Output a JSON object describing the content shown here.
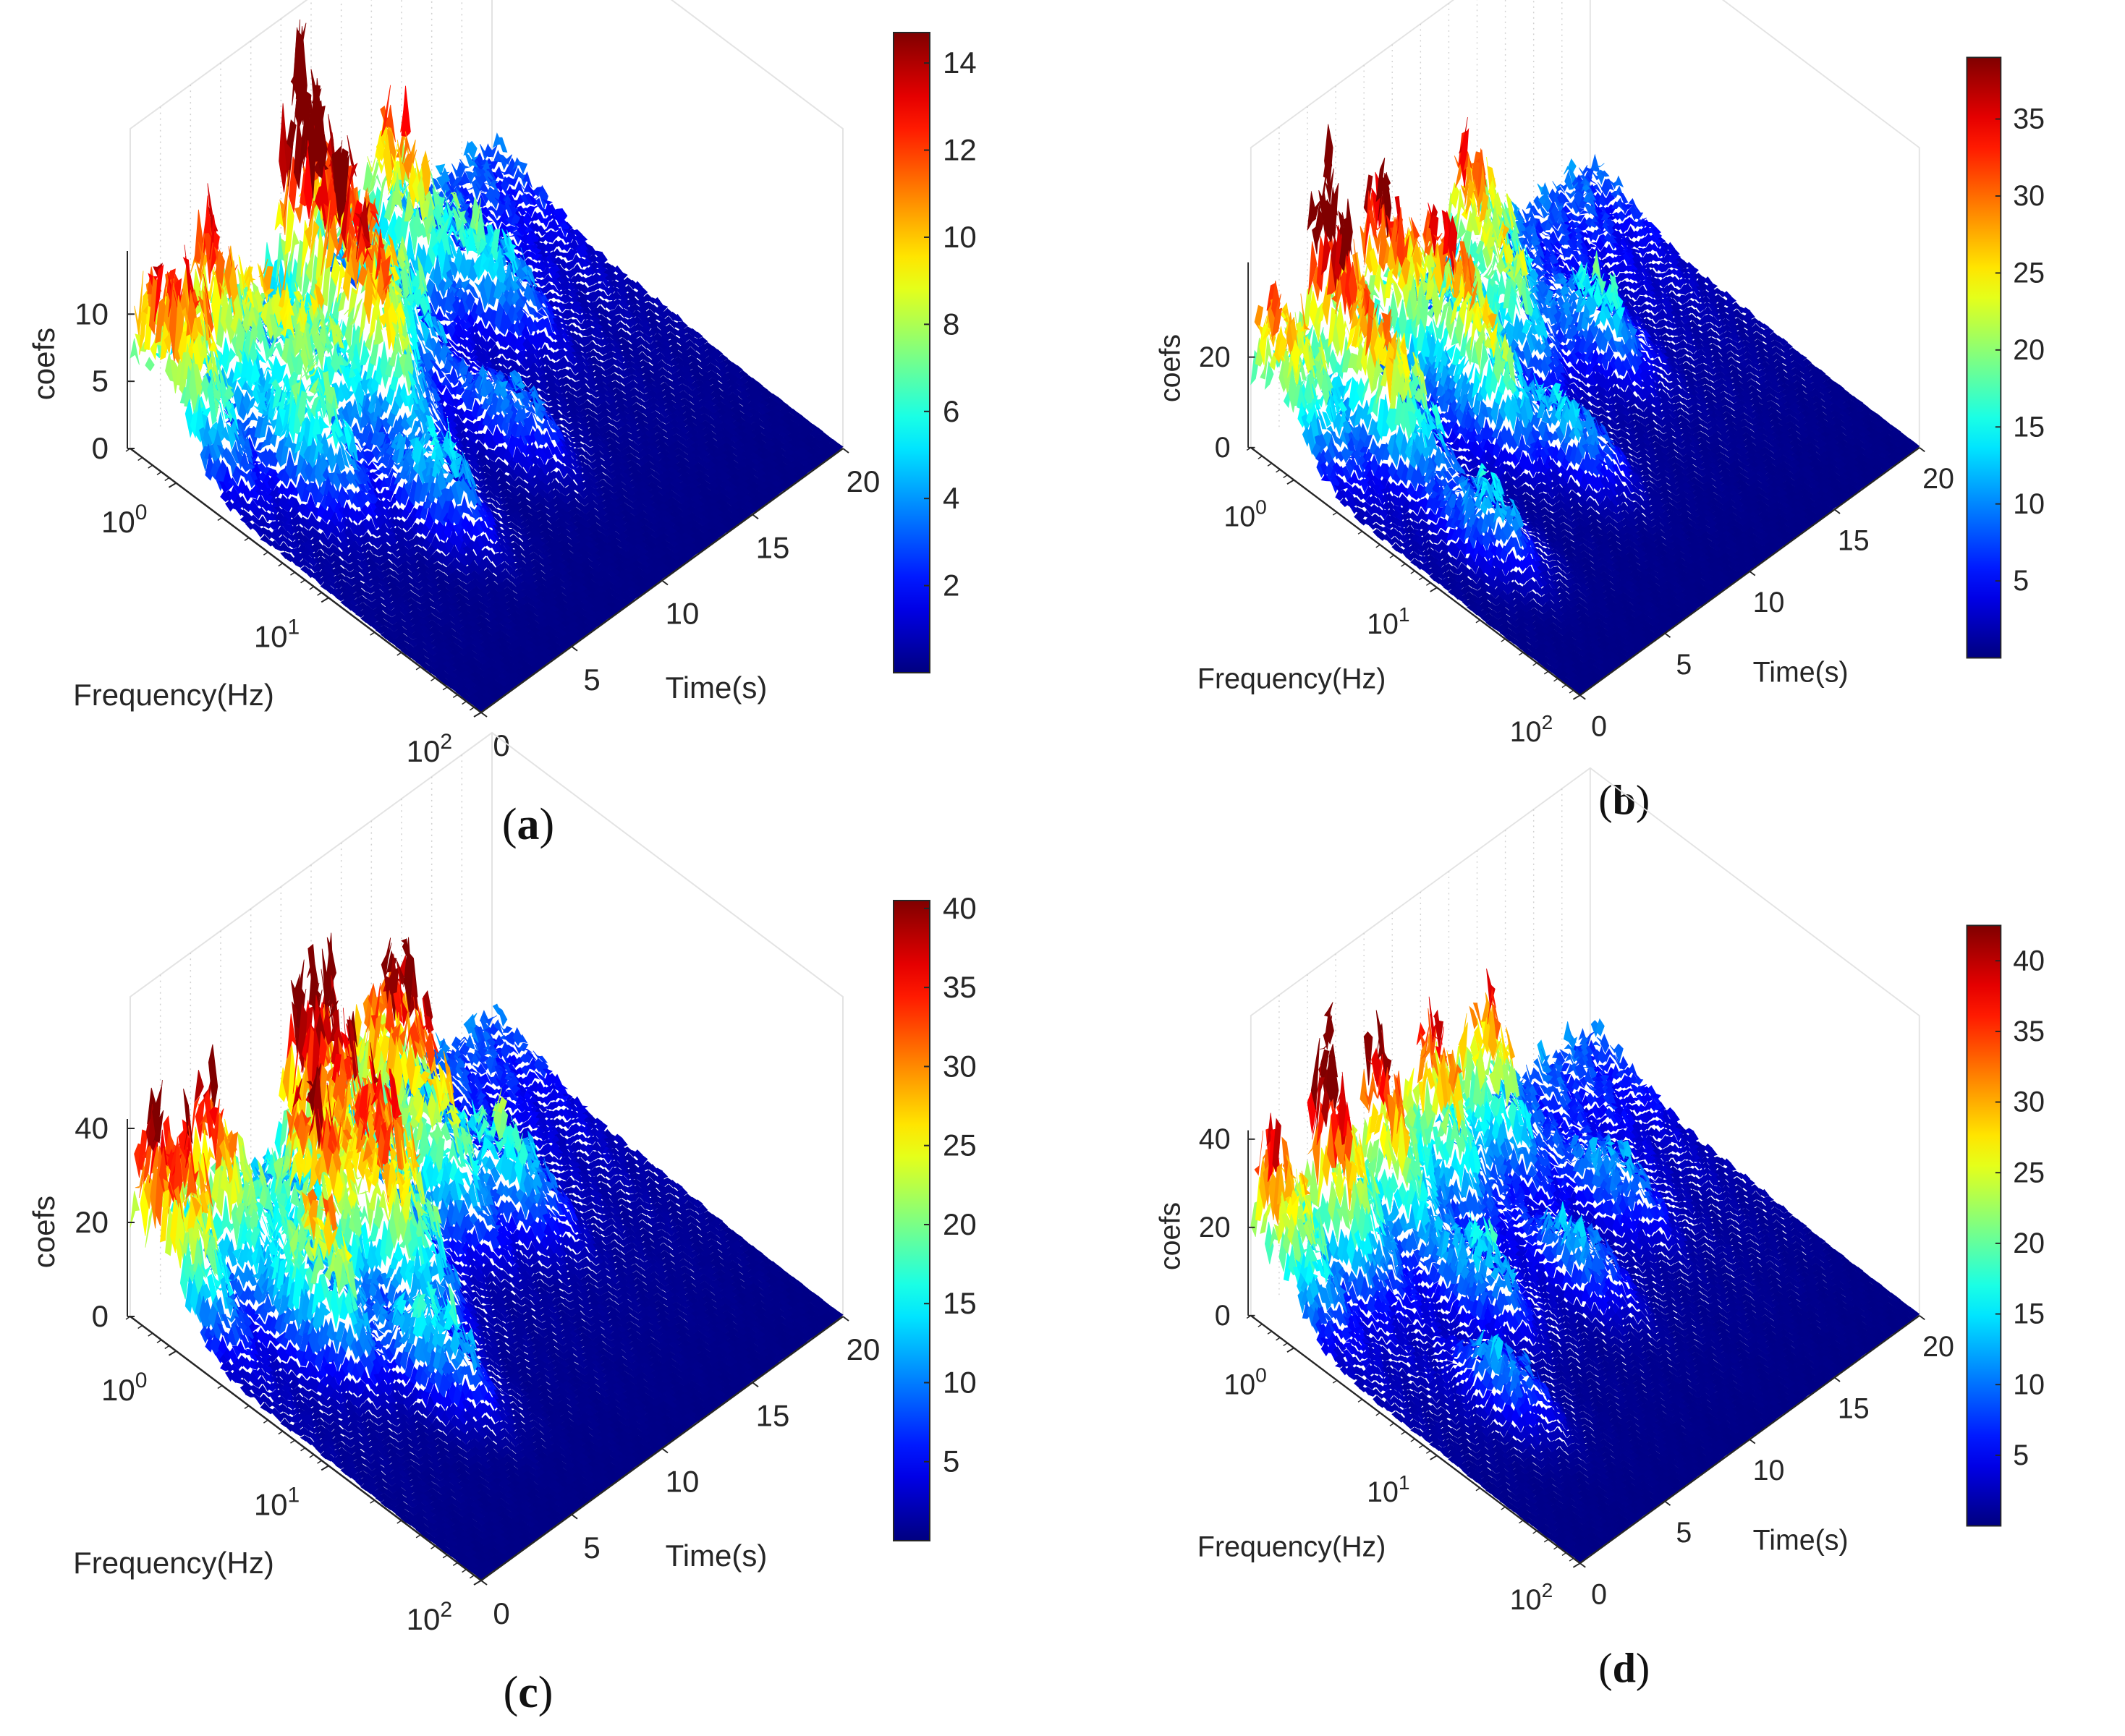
{
  "figure": {
    "panels": [
      {
        "caption": "a",
        "caption_prefix": "(",
        "caption_suffix": ")"
      },
      {
        "caption": "b",
        "caption_prefix": "(",
        "caption_suffix": ")"
      },
      {
        "caption": "c",
        "caption_prefix": "(",
        "caption_suffix": ")"
      },
      {
        "caption": "d",
        "caption_prefix": "(",
        "caption_suffix": ")"
      }
    ]
  },
  "chart_data": [
    {
      "type": "surface",
      "caption": "(a)",
      "xlabel": "Time(s)",
      "ylabel": "Frequency(Hz)",
      "zlabel": "coefs",
      "x_ticks": [
        "0",
        "5",
        "10",
        "15",
        "20"
      ],
      "y_ticks": [
        {
          "base": "10",
          "exp": "0"
        },
        {
          "base": "10",
          "exp": "1"
        },
        {
          "base": "10",
          "exp": "2"
        }
      ],
      "y_scale": "log",
      "z_ticks": [
        "0",
        "5",
        "10"
      ],
      "zlim": [
        0,
        14
      ],
      "xlim": [
        0,
        20
      ],
      "ylim": [
        0.5,
        100
      ],
      "colorbar": {
        "min": 0,
        "max": 14.7,
        "ticks": [
          "2",
          "4",
          "6",
          "8",
          "10",
          "12",
          "14"
        ],
        "colormap": "jet"
      },
      "peaks": [
        {
          "t": 1.0,
          "f": 0.8,
          "z": 11.5
        },
        {
          "t": 4.0,
          "f": 0.6,
          "z": 9.5
        },
        {
          "t": 9.0,
          "f": 0.6,
          "z": 14.7
        },
        {
          "t": 13.5,
          "f": 0.8,
          "z": 8.5
        },
        {
          "t": 5.5,
          "f": 1.5,
          "z": 8.0
        },
        {
          "t": 8.5,
          "f": 1.6,
          "z": 9.0
        },
        {
          "t": 3.5,
          "f": 3.0,
          "z": 7.0
        },
        {
          "t": 7.5,
          "f": 3.0,
          "z": 7.5
        },
        {
          "t": 10.5,
          "f": 1.5,
          "z": 6.5
        },
        {
          "t": 6.0,
          "f": 10.0,
          "z": 5.5
        },
        {
          "t": 15.0,
          "f": 2.0,
          "z": 5.0
        },
        {
          "t": 11.0,
          "f": 8.0,
          "z": 4.0
        }
      ]
    },
    {
      "type": "surface",
      "caption": "(b)",
      "xlabel": "Time(s)",
      "ylabel": "Frequency(Hz)",
      "zlabel": "coefs",
      "x_ticks": [
        "0",
        "5",
        "10",
        "15",
        "20"
      ],
      "y_ticks": [
        {
          "base": "10",
          "exp": "0"
        },
        {
          "base": "10",
          "exp": "1"
        },
        {
          "base": "10",
          "exp": "2"
        }
      ],
      "y_scale": "log",
      "z_ticks": [
        "0",
        "20"
      ],
      "zlim": [
        0,
        39
      ],
      "xlim": [
        0,
        20
      ],
      "ylim": [
        0.5,
        100
      ],
      "colorbar": {
        "min": 0,
        "max": 39,
        "ticks": [
          "5",
          "10",
          "15",
          "20",
          "25",
          "30",
          "35"
        ],
        "colormap": "jet"
      },
      "peaks": [
        {
          "t": 1.0,
          "f": 0.7,
          "z": 24.0
        },
        {
          "t": 4.0,
          "f": 0.6,
          "z": 37.0
        },
        {
          "t": 7.0,
          "f": 0.6,
          "z": 28.0
        },
        {
          "t": 12.5,
          "f": 0.6,
          "z": 24.0
        },
        {
          "t": 8.5,
          "f": 1.3,
          "z": 24.0
        },
        {
          "t": 3.5,
          "f": 2.0,
          "z": 26.0
        },
        {
          "t": 7.5,
          "f": 3.0,
          "z": 19.0
        },
        {
          "t": 11.0,
          "f": 1.5,
          "z": 18.0
        },
        {
          "t": 3.0,
          "f": 10.0,
          "z": 13.0
        },
        {
          "t": 9.0,
          "f": 8.0,
          "z": 12.0
        },
        {
          "t": 14.0,
          "f": 3.0,
          "z": 14.0
        }
      ]
    },
    {
      "type": "surface",
      "caption": "(c)",
      "xlabel": "Time(s)",
      "ylabel": "Frequency(Hz)",
      "zlabel": "coefs",
      "x_ticks": [
        "0",
        "5",
        "10",
        "15",
        "20"
      ],
      "y_ticks": [
        {
          "base": "10",
          "exp": "0"
        },
        {
          "base": "10",
          "exp": "1"
        },
        {
          "base": "10",
          "exp": "2"
        }
      ],
      "y_scale": "log",
      "z_ticks": [
        "0",
        "20",
        "40"
      ],
      "zlim": [
        0,
        40
      ],
      "xlim": [
        0,
        20
      ],
      "ylim": [
        0.5,
        100
      ],
      "colorbar": {
        "min": 0,
        "max": 40.5,
        "ticks": [
          "5",
          "10",
          "15",
          "20",
          "25",
          "30",
          "35",
          "40"
        ],
        "colormap": "jet"
      },
      "peaks": [
        {
          "t": 1.0,
          "f": 0.7,
          "z": 36.0
        },
        {
          "t": 4.0,
          "f": 0.6,
          "z": 28.0
        },
        {
          "t": 9.5,
          "f": 0.6,
          "z": 40.5
        },
        {
          "t": 13.0,
          "f": 0.8,
          "z": 35.0
        },
        {
          "t": 6.5,
          "f": 1.5,
          "z": 32.0
        },
        {
          "t": 9.0,
          "f": 1.8,
          "z": 28.0
        },
        {
          "t": 4.0,
          "f": 3.0,
          "z": 25.0
        },
        {
          "t": 8.0,
          "f": 3.5,
          "z": 22.0
        },
        {
          "t": 12.0,
          "f": 2.0,
          "z": 20.0
        },
        {
          "t": 6.0,
          "f": 10.0,
          "z": 17.0
        },
        {
          "t": 14.5,
          "f": 3.0,
          "z": 16.0
        }
      ]
    },
    {
      "type": "surface",
      "caption": "(d)",
      "xlabel": "Time(s)",
      "ylabel": "Frequency(Hz)",
      "zlabel": "coefs",
      "x_ticks": [
        "0",
        "5",
        "10",
        "15",
        "20"
      ],
      "y_ticks": [
        {
          "base": "10",
          "exp": "0"
        },
        {
          "base": "10",
          "exp": "1"
        },
        {
          "base": "10",
          "exp": "2"
        }
      ],
      "y_scale": "log",
      "z_ticks": [
        "0",
        "20",
        "40"
      ],
      "zlim": [
        0,
        40
      ],
      "xlim": [
        0,
        20
      ],
      "ylim": [
        0.5,
        100
      ],
      "colorbar": {
        "min": 0,
        "max": 42.5,
        "ticks": [
          "5",
          "10",
          "15",
          "20",
          "25",
          "30",
          "35",
          "40"
        ],
        "colormap": "jet"
      },
      "peaks": [
        {
          "t": 1.0,
          "f": 0.6,
          "z": 28.0
        },
        {
          "t": 4.0,
          "f": 0.6,
          "z": 38.0
        },
        {
          "t": 7.0,
          "f": 0.6,
          "z": 30.0
        },
        {
          "t": 10.0,
          "f": 0.6,
          "z": 27.0
        },
        {
          "t": 13.0,
          "f": 0.6,
          "z": 24.0
        },
        {
          "t": 7.0,
          "f": 3.0,
          "z": 14.0
        },
        {
          "t": 11.0,
          "f": 5.0,
          "z": 12.0
        },
        {
          "t": 4.0,
          "f": 10.0,
          "z": 12.0
        },
        {
          "t": 15.0,
          "f": 3.0,
          "z": 11.0
        }
      ]
    }
  ]
}
